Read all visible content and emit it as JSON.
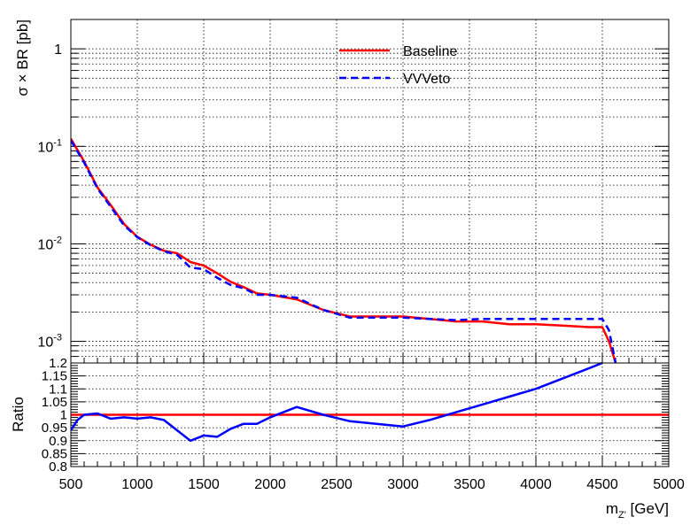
{
  "chart_data": [
    {
      "type": "line",
      "ylabel": "σ × BR [pb]",
      "yscale": "log",
      "xlim": [
        500,
        5000
      ],
      "ylim": [
        0.0006,
        2.0
      ],
      "grid": true,
      "legend": "top-center",
      "yticks": [
        {
          "value": 0.001,
          "base": "10",
          "exp": "-3"
        },
        {
          "value": 0.01,
          "base": "10",
          "exp": "-2"
        },
        {
          "value": 0.1,
          "base": "10",
          "exp": "-1"
        },
        {
          "value": 1,
          "base": "1",
          "exp": ""
        }
      ],
      "series": [
        {
          "name": "Baseline",
          "color": "#ff0000",
          "style": "solid",
          "x": [
            500,
            600,
            700,
            800,
            900,
            1000,
            1100,
            1200,
            1300,
            1400,
            1500,
            1600,
            1700,
            1800,
            1900,
            2000,
            2200,
            2400,
            2600,
            2800,
            3000,
            3200,
            3400,
            3600,
            3800,
            4000,
            4200,
            4400,
            4500,
            4550,
            4600
          ],
          "y": [
            0.12,
            0.07,
            0.038,
            0.025,
            0.016,
            0.0118,
            0.0098,
            0.0085,
            0.008,
            0.0065,
            0.006,
            0.005,
            0.0041,
            0.0036,
            0.0031,
            0.003,
            0.0027,
            0.0021,
            0.0018,
            0.0018,
            0.0018,
            0.0017,
            0.0016,
            0.0016,
            0.0015,
            0.0015,
            0.00145,
            0.0014,
            0.0014,
            0.001,
            0.0006
          ]
        },
        {
          "name": "VVVeto",
          "color": "#0000ff",
          "style": "dashed",
          "x": [
            500,
            600,
            700,
            800,
            900,
            1000,
            1100,
            1200,
            1300,
            1400,
            1500,
            1600,
            1700,
            1800,
            1900,
            2000,
            2200,
            2400,
            2600,
            2800,
            3000,
            3200,
            3400,
            3600,
            3800,
            4000,
            4200,
            4400,
            4500,
            4550,
            4600
          ],
          "y": [
            0.115,
            0.068,
            0.037,
            0.024,
            0.0155,
            0.0117,
            0.0097,
            0.0084,
            0.0077,
            0.0057,
            0.0055,
            0.0045,
            0.0038,
            0.0035,
            0.003,
            0.003,
            0.0028,
            0.0021,
            0.00175,
            0.00175,
            0.00175,
            0.0017,
            0.00165,
            0.0017,
            0.0017,
            0.0017,
            0.0017,
            0.0017,
            0.0017,
            0.0013,
            0.0006
          ]
        }
      ]
    },
    {
      "type": "line",
      "ylabel": "Ratio",
      "xlabel_main": "m",
      "xlabel_sub": "Z'",
      "xlabel_unit": " [GeV]",
      "xlim": [
        500,
        5000
      ],
      "ylim": [
        0.8,
        1.2
      ],
      "grid": true,
      "yticks": [
        0.8,
        0.85,
        0.9,
        0.95,
        1.0,
        1.05,
        1.1,
        1.15,
        1.2
      ],
      "ytick_labels": [
        "0.8",
        "0.85",
        "0.9",
        "0.95",
        "1",
        "1.05",
        "1.1",
        "1.15",
        "1.2"
      ],
      "xticks": [
        500,
        1000,
        1500,
        2000,
        2500,
        3000,
        3500,
        4000,
        4500,
        5000
      ],
      "xtick_labels": [
        "500",
        "1000",
        "1500",
        "2000",
        "2500",
        "3000",
        "3500",
        "4000",
        "4500",
        "5000"
      ],
      "series": [
        {
          "name": "Baseline",
          "color": "#ff0000",
          "x": [
            500,
            5000
          ],
          "y": [
            1.0,
            1.0
          ]
        },
        {
          "name": "VVVeto",
          "color": "#0000ff",
          "x": [
            500,
            550,
            600,
            700,
            800,
            900,
            1000,
            1100,
            1200,
            1300,
            1400,
            1500,
            1600,
            1700,
            1800,
            1900,
            2000,
            2200,
            2400,
            2600,
            2800,
            3000,
            3200,
            3400,
            3600,
            3800,
            4000,
            4200,
            4400,
            4500
          ],
          "y": [
            0.94,
            0.98,
            1.0,
            1.005,
            0.985,
            0.99,
            0.985,
            0.99,
            0.98,
            0.94,
            0.9,
            0.92,
            0.915,
            0.945,
            0.965,
            0.965,
            0.99,
            1.03,
            1.0,
            0.975,
            0.965,
            0.955,
            0.98,
            1.01,
            1.04,
            1.07,
            1.1,
            1.14,
            1.18,
            1.2
          ]
        }
      ]
    }
  ]
}
